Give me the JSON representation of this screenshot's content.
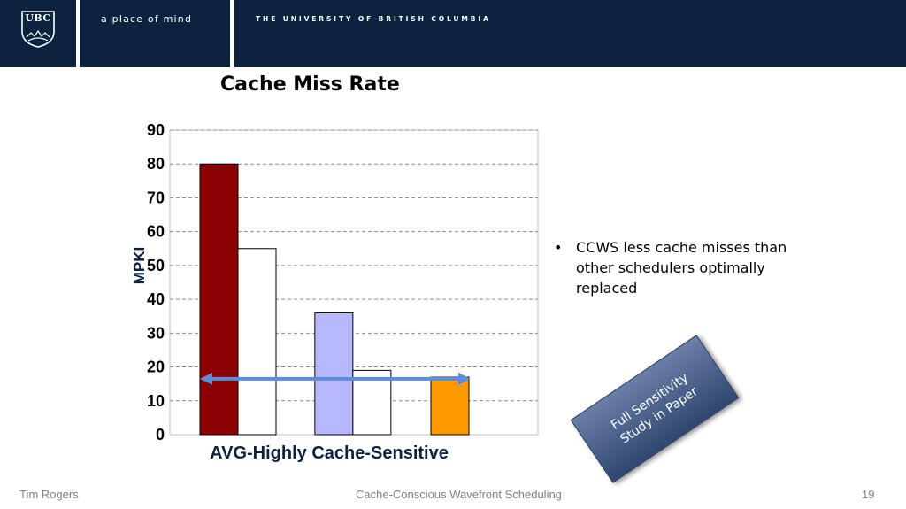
{
  "header": {
    "logo_text": "UBC",
    "tagline": "a place of mind",
    "university": "THE UNIVERSITY OF BRITISH COLUMBIA",
    "bg_color": "#0c2340"
  },
  "slide": {
    "bullet": "CCWS less cache misses than other schedulers optimally replaced",
    "callout": {
      "line1": "Full Sensitivity",
      "line2": "Study in Paper"
    }
  },
  "footer": {
    "author": "Tim Rogers",
    "title": "Cache-Conscious Wavefront Scheduling",
    "page": "19"
  },
  "chart_data": {
    "type": "bar",
    "title": "Cache Miss Rate",
    "ylabel": "MPKI",
    "xlabel": "",
    "categories": [
      "AVG-Highly Cache-Sensitive"
    ],
    "ylim": [
      0,
      90
    ],
    "yticks": [
      0,
      10,
      20,
      30,
      40,
      50,
      60,
      70,
      80,
      90
    ],
    "grid": true,
    "series": [
      {
        "values": [
          80
        ],
        "color": "#8b0000"
      },
      {
        "values": [
          55
        ],
        "color": "#ffffff"
      },
      {
        "values": [
          36
        ],
        "color": "#b8b8ff"
      },
      {
        "values": [
          19
        ],
        "color": "#ffffff"
      },
      {
        "values": [
          17
        ],
        "color": "#ff9900"
      }
    ],
    "annotation_arrow": {
      "y": 16.5,
      "color": "#5b8ed6"
    }
  }
}
